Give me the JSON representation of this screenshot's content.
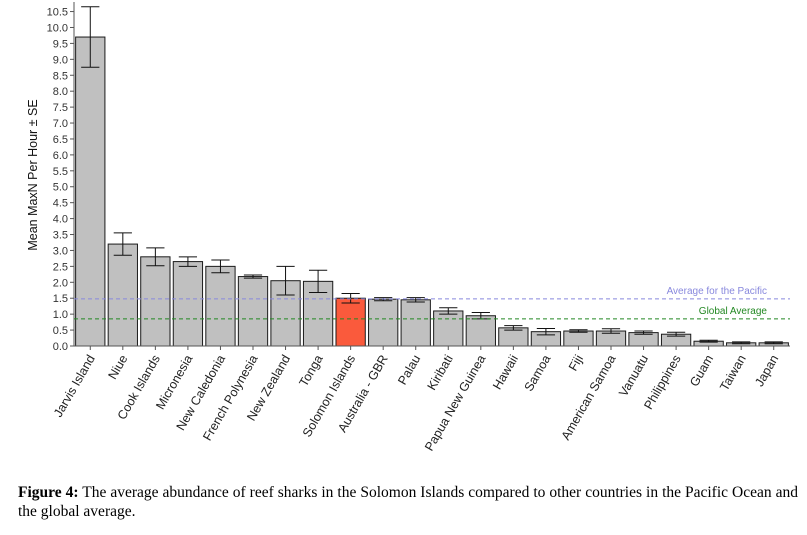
{
  "chart_data": {
    "type": "bar",
    "ylabel": "Mean MaxN Per Hour ± SE",
    "xlabel": "",
    "ylim": [
      0,
      10.8
    ],
    "yticks": [
      0.0,
      0.5,
      1.0,
      1.5,
      2.0,
      2.5,
      3.0,
      3.5,
      4.0,
      4.5,
      5.0,
      5.5,
      6.0,
      6.5,
      7.0,
      7.5,
      8.0,
      8.5,
      9.0,
      9.5,
      10.0,
      10.5
    ],
    "categories": [
      "Jarvis Island",
      "Niue",
      "Cook Islands",
      "Micronesia",
      "New Caledonia",
      "French Polynesia",
      "New Zealand",
      "Tonga",
      "Solomon Islands",
      "Australia - GBR",
      "Palau",
      "Kiribati",
      "Papua New Guinea",
      "Hawaii",
      "Samoa",
      "Fiji",
      "American Samoa",
      "Vanuatu",
      "Philippines",
      "Guam",
      "Taiwan",
      "Japan"
    ],
    "values": [
      9.7,
      3.2,
      2.8,
      2.65,
      2.5,
      2.18,
      2.05,
      2.03,
      1.5,
      1.47,
      1.45,
      1.1,
      0.95,
      0.57,
      0.45,
      0.47,
      0.47,
      0.42,
      0.37,
      0.15,
      0.1,
      0.1
    ],
    "errors": [
      0.95,
      0.35,
      0.28,
      0.15,
      0.2,
      0.05,
      0.45,
      0.35,
      0.15,
      0.05,
      0.07,
      0.1,
      0.1,
      0.07,
      0.1,
      0.04,
      0.07,
      0.05,
      0.06,
      0.03,
      0.03,
      0.03
    ],
    "highlight": "Solomon Islands",
    "bar_color": "#c0c0c0",
    "highlight_color": "#fa5a3c",
    "reference_lines": [
      {
        "label": "Average for the Pacific",
        "value": 1.48,
        "color": "#8888dd"
      },
      {
        "label": "Global Average",
        "value": 0.85,
        "color": "#228822"
      }
    ]
  },
  "caption": {
    "label": "Figure 4:",
    "text": " The average abundance of reef sharks in the Solomon Islands compared to other countries in the Pacific Ocean and the global average."
  }
}
